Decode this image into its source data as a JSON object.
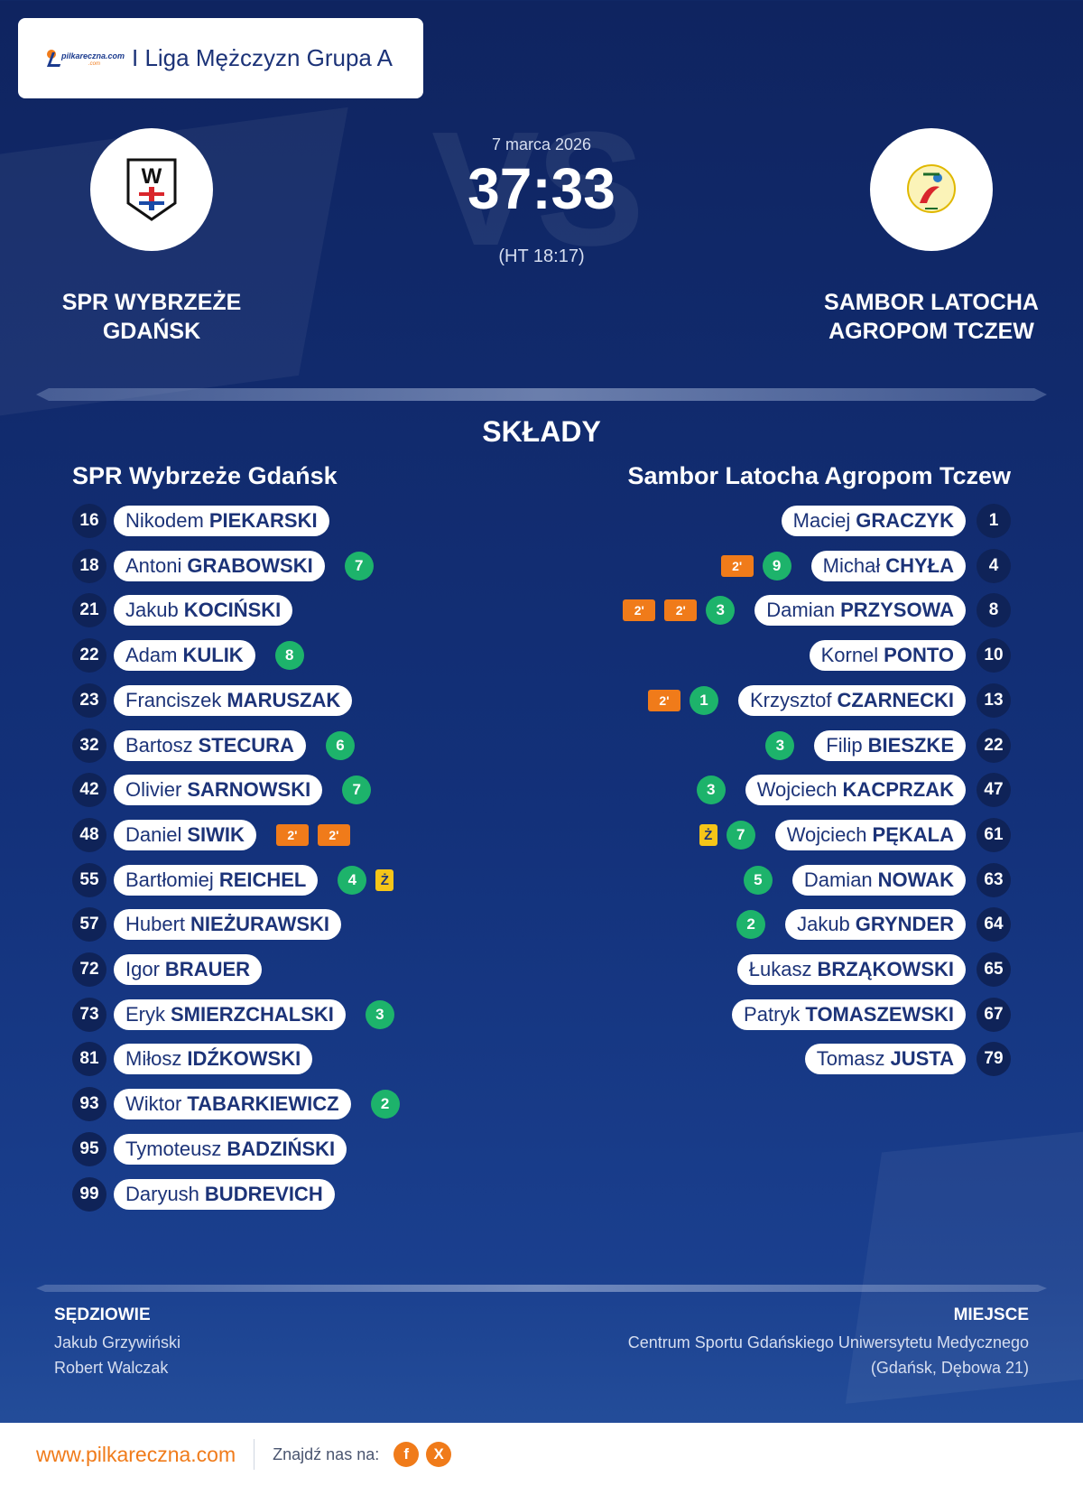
{
  "header": {
    "brand_logo": "pilkareczna.com",
    "brand_logo_sub": ".com",
    "league": "I Liga Mężczyzn Grupa A"
  },
  "match": {
    "date": "7 marca 2026",
    "score": "37:33",
    "halftime": "(HT 18:17)",
    "vs_watermark": "VS",
    "home_line1": "SPR WYBRZEŻE",
    "home_line2": "GDAŃSK",
    "away_line1": "SAMBOR LATOCHA",
    "away_line2": "AGROPOM TCZEW",
    "home_crest_letter": "W",
    "away_crest_icon": "sambor-tczew-crest-icon"
  },
  "squads": {
    "heading": "SKŁADY",
    "home_title": "SPR Wybrzeże Gdańsk",
    "away_title": "Sambor Latocha Agropom Tczew",
    "home": [
      {
        "num": "16",
        "first": "Nikodem",
        "last": "PIEKARSKI",
        "goals": "",
        "susp": [],
        "yellow": ""
      },
      {
        "num": "18",
        "first": "Antoni",
        "last": "GRABOWSKI",
        "goals": "7",
        "susp": [],
        "yellow": ""
      },
      {
        "num": "21",
        "first": "Jakub",
        "last": "KOCIŃSKI",
        "goals": "",
        "susp": [],
        "yellow": ""
      },
      {
        "num": "22",
        "first": "Adam",
        "last": "KULIK",
        "goals": "8",
        "susp": [],
        "yellow": ""
      },
      {
        "num": "23",
        "first": "Franciszek",
        "last": "MARUSZAK",
        "goals": "",
        "susp": [],
        "yellow": ""
      },
      {
        "num": "32",
        "first": "Bartosz",
        "last": "STECURA",
        "goals": "6",
        "susp": [],
        "yellow": ""
      },
      {
        "num": "42",
        "first": "Olivier",
        "last": "SARNOWSKI",
        "goals": "7",
        "susp": [],
        "yellow": ""
      },
      {
        "num": "48",
        "first": "Daniel",
        "last": "SIWIK",
        "goals": "",
        "susp": [
          "2'",
          "2'"
        ],
        "yellow": ""
      },
      {
        "num": "55",
        "first": "Bartłomiej",
        "last": "REICHEL",
        "goals": "4",
        "susp": [],
        "yellow": "Ż"
      },
      {
        "num": "57",
        "first": "Hubert",
        "last": "NIEŻURAWSKI",
        "goals": "",
        "susp": [],
        "yellow": ""
      },
      {
        "num": "72",
        "first": "Igor",
        "last": "BRAUER",
        "goals": "",
        "susp": [],
        "yellow": ""
      },
      {
        "num": "73",
        "first": "Eryk",
        "last": "SMIERZCHALSKI",
        "goals": "3",
        "susp": [],
        "yellow": ""
      },
      {
        "num": "81",
        "first": "Miłosz",
        "last": "IDŹKOWSKI",
        "goals": "",
        "susp": [],
        "yellow": ""
      },
      {
        "num": "93",
        "first": "Wiktor",
        "last": "TABARKIEWICZ",
        "goals": "2",
        "susp": [],
        "yellow": ""
      },
      {
        "num": "95",
        "first": "Tymoteusz",
        "last": "BADZIŃSKI",
        "goals": "",
        "susp": [],
        "yellow": ""
      },
      {
        "num": "99",
        "first": "Daryush",
        "last": "BUDREVICH",
        "goals": "",
        "susp": [],
        "yellow": ""
      }
    ],
    "away": [
      {
        "num": "1",
        "first": "Maciej",
        "last": "GRACZYK",
        "goals": "",
        "susp": [],
        "yellow": ""
      },
      {
        "num": "4",
        "first": "Michał",
        "last": "CHYŁA",
        "goals": "9",
        "susp": [
          "2'"
        ],
        "yellow": ""
      },
      {
        "num": "8",
        "first": "Damian",
        "last": "PRZYSOWA",
        "goals": "3",
        "susp": [
          "2'",
          "2'"
        ],
        "yellow": ""
      },
      {
        "num": "10",
        "first": "Kornel",
        "last": "PONTO",
        "goals": "",
        "susp": [],
        "yellow": ""
      },
      {
        "num": "13",
        "first": "Krzysztof",
        "last": "CZARNECKI",
        "goals": "1",
        "susp": [
          "2'"
        ],
        "yellow": ""
      },
      {
        "num": "22",
        "first": "Filip",
        "last": "BIESZKE",
        "goals": "3",
        "susp": [],
        "yellow": ""
      },
      {
        "num": "47",
        "first": "Wojciech",
        "last": "KACPRZAK",
        "goals": "3",
        "susp": [],
        "yellow": ""
      },
      {
        "num": "61",
        "first": "Wojciech",
        "last": "PĘKALA",
        "goals": "7",
        "susp": [],
        "yellow": "Ż"
      },
      {
        "num": "63",
        "first": "Damian",
        "last": "NOWAK",
        "goals": "5",
        "susp": [],
        "yellow": ""
      },
      {
        "num": "64",
        "first": "Jakub",
        "last": "GRYNDER",
        "goals": "2",
        "susp": [],
        "yellow": ""
      },
      {
        "num": "65",
        "first": "Łukasz",
        "last": "BRZĄKOWSKI",
        "goals": "",
        "susp": [],
        "yellow": ""
      },
      {
        "num": "67",
        "first": "Patryk",
        "last": "TOMASZEWSKI",
        "goals": "",
        "susp": [],
        "yellow": ""
      },
      {
        "num": "79",
        "first": "Tomasz",
        "last": "JUSTA",
        "goals": "",
        "susp": [],
        "yellow": ""
      }
    ]
  },
  "officials": {
    "referees_label": "SĘDZIOWIE",
    "referees": [
      "Jakub Grzywiński",
      "Robert Walczak"
    ],
    "venue_label": "MIEJSCE",
    "venue_line1": "Centrum Sportu Gdańskiego Uniwersytetu Medycznego",
    "venue_line2": "(Gdańsk, Dębowa 21)"
  },
  "footer": {
    "url": "www.pilkareczna.com",
    "find_us": "Znajdź nas na:",
    "facebook": "f",
    "x": "X"
  },
  "colors": {
    "accent_orange": "#f07b1a",
    "goal_green": "#1db36b",
    "yellow_card": "#f5c518",
    "navy": "#0f2358",
    "text_navy": "#1c3378"
  }
}
